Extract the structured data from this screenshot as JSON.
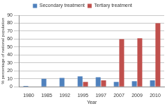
{
  "chart_data": {
    "type": "bar",
    "xlabel": "Year",
    "ylabel": "% percentage of national population",
    "categories": [
      "1980",
      "1985",
      "1992",
      "1995",
      "1997",
      "2007",
      "2009",
      "2010"
    ],
    "series": [
      {
        "name": "Secondary treatment",
        "color": "#4f81bd",
        "values": [
          1,
          10,
          11,
          13,
          12,
          6,
          7,
          8
        ]
      },
      {
        "name": "Tertiary treatment",
        "color": "#c0504d",
        "values": [
          0,
          0,
          0,
          6,
          8,
          60,
          61,
          80
        ]
      }
    ],
    "ylim": [
      0,
      90
    ],
    "yticks": [
      0,
      10,
      20,
      30,
      40,
      50,
      60,
      70,
      80,
      90
    ],
    "grid": true,
    "legend": "top"
  }
}
